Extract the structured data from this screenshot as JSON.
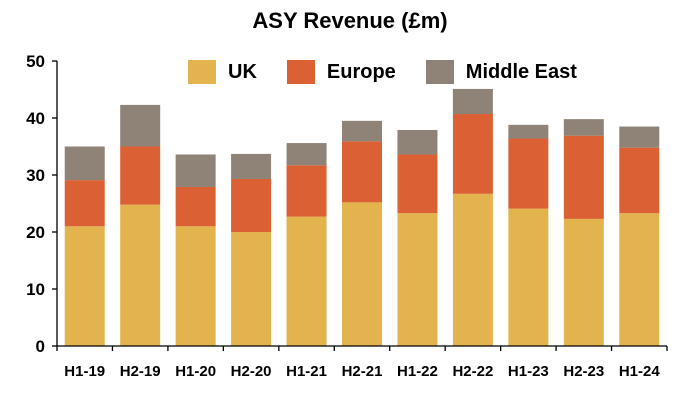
{
  "chart_data": {
    "type": "bar",
    "stacked": true,
    "title": "ASY Revenue (£m)",
    "xlabel": "",
    "ylabel": "",
    "ylim": [
      0,
      50
    ],
    "yticks": [
      0,
      10,
      20,
      30,
      40,
      50
    ],
    "grid": false,
    "legend_position": "top",
    "categories": [
      "H1-19",
      "H2-19",
      "H1-20",
      "H2-20",
      "H1-21",
      "H2-21",
      "H1-22",
      "H2-22",
      "H1-23",
      "H2-23",
      "H1-24"
    ],
    "series": [
      {
        "name": "UK",
        "color": "#E3B44E",
        "values": [
          21.0,
          24.8,
          21.0,
          20.0,
          22.7,
          25.2,
          23.3,
          26.7,
          24.1,
          22.3,
          23.3
        ]
      },
      {
        "name": "Europe",
        "color": "#DB6134",
        "values": [
          8.1,
          10.2,
          6.9,
          9.3,
          9.0,
          10.7,
          10.3,
          14.0,
          12.3,
          14.6,
          11.5
        ]
      },
      {
        "name": "Middle East",
        "color": "#8F8378",
        "values": [
          5.9,
          7.3,
          5.7,
          4.4,
          3.9,
          3.6,
          4.3,
          4.4,
          2.4,
          2.9,
          3.7
        ]
      }
    ]
  }
}
